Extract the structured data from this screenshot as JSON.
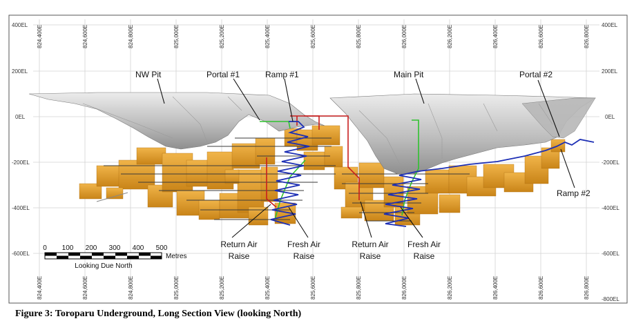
{
  "caption": "Figure 3: Toroparu Underground, Long Section View (looking North)",
  "elevation_labels": [
    {
      "key": "el400",
      "text": "400EL"
    },
    {
      "key": "el200",
      "text": "200EL"
    },
    {
      "key": "el0",
      "text": "0EL"
    },
    {
      "key": "elm200",
      "text": "-200EL"
    },
    {
      "key": "elm400",
      "text": "-400EL"
    },
    {
      "key": "elm600",
      "text": "-600EL"
    },
    {
      "key": "elm800",
      "text": "-800EL"
    }
  ],
  "easting_labels": [
    "824,400E",
    "824,600E",
    "824,800E",
    "825,000E",
    "825,200E",
    "825,400E",
    "825,600E",
    "825,800E",
    "826,000E",
    "826,200E",
    "826,400E",
    "826,600E",
    "826,800E"
  ],
  "labels": {
    "nw_pit": "NW Pit",
    "portal1": "Portal #1",
    "ramp1": "Ramp #1",
    "main_pit": "Main Pit",
    "portal2": "Portal #2",
    "ramp2": "Ramp #2",
    "return_air_1_line1": "Return Air",
    "return_air_1_line2": "Raise",
    "fresh_air_1_line1": "Fresh Air",
    "fresh_air_1_line2": "Raise",
    "return_air_2_line1": "Return Air",
    "return_air_2_line2": "Raise",
    "fresh_air_2_line1": "Fresh Air",
    "fresh_air_2_line2": "Raise"
  },
  "scale_bar": {
    "ticks": [
      "0",
      "100",
      "200",
      "300",
      "400",
      "500"
    ],
    "unit": "Metres",
    "note": "Looking Due North"
  },
  "colors": {
    "ore": "#e6a02e",
    "pit": "#c9c9c9",
    "ramp": "#1d2fb5",
    "fresh_air": "#2fc22f",
    "return_air": "#c81e1e",
    "grid": "#cfcfcf"
  }
}
